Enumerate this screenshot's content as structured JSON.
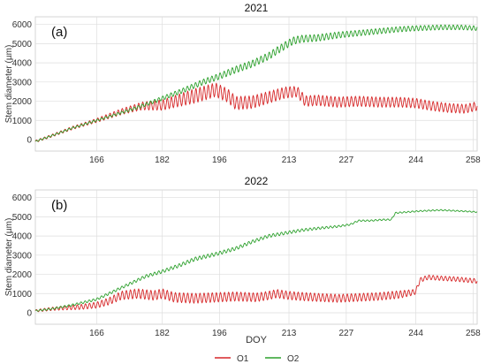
{
  "chart_data": [
    {
      "type": "line",
      "title": "2021",
      "panel_label": "(a)",
      "xlabel": "",
      "ylabel": "Stem diameter (µm)",
      "xlim": [
        151,
        259
      ],
      "ylim": [
        -600,
        6400
      ],
      "xticks": [
        166,
        182,
        196,
        213,
        227,
        244,
        258
      ],
      "yticks": [
        0,
        1000,
        2000,
        3000,
        4000,
        5000,
        6000
      ],
      "grid": true,
      "series": [
        {
          "name": "O1",
          "color": "#d62728",
          "points": [
            [
              151,
              -100
            ],
            [
              155,
              200
            ],
            [
              160,
              600
            ],
            [
              166,
              1000
            ],
            [
              172,
              1450
            ],
            [
              177,
              1750
            ],
            [
              182,
              1800
            ],
            [
              187,
              2100
            ],
            [
              192,
              2400
            ],
            [
              195,
              2600
            ],
            [
              198,
              2300
            ],
            [
              200,
              1900
            ],
            [
              204,
              1950
            ],
            [
              208,
              2200
            ],
            [
              212,
              2450
            ],
            [
              215,
              2500
            ],
            [
              217,
              2000
            ],
            [
              220,
              2050
            ],
            [
              225,
              1950
            ],
            [
              230,
              2000
            ],
            [
              235,
              1950
            ],
            [
              240,
              1950
            ],
            [
              244,
              1900
            ],
            [
              248,
              1750
            ],
            [
              252,
              1650
            ],
            [
              256,
              1600
            ],
            [
              259,
              1750
            ]
          ],
          "osc_amp": [
            [
              151,
              60
            ],
            [
              165,
              100
            ],
            [
              175,
              180
            ],
            [
              190,
              380
            ],
            [
              200,
              350
            ],
            [
              215,
              280
            ],
            [
              240,
              260
            ],
            [
              259,
              230
            ]
          ]
        },
        {
          "name": "O2",
          "color": "#2ca02c",
          "points": [
            [
              151,
              -100
            ],
            [
              155,
              200
            ],
            [
              160,
              600
            ],
            [
              166,
              1000
            ],
            [
              172,
              1400
            ],
            [
              177,
              1750
            ],
            [
              182,
              2150
            ],
            [
              187,
              2550
            ],
            [
              192,
              3000
            ],
            [
              196,
              3300
            ],
            [
              200,
              3650
            ],
            [
              204,
              3950
            ],
            [
              208,
              4350
            ],
            [
              212,
              4900
            ],
            [
              214,
              5150
            ],
            [
              216,
              5250
            ],
            [
              220,
              5300
            ],
            [
              225,
              5450
            ],
            [
              230,
              5550
            ],
            [
              235,
              5650
            ],
            [
              240,
              5750
            ],
            [
              244,
              5800
            ],
            [
              250,
              5850
            ],
            [
              255,
              5850
            ],
            [
              259,
              5800
            ]
          ],
          "osc_amp": [
            [
              151,
              40
            ],
            [
              170,
              60
            ],
            [
              185,
              120
            ],
            [
              200,
              180
            ],
            [
              213,
              200
            ],
            [
              230,
              150
            ],
            [
              259,
              120
            ]
          ]
        }
      ]
    },
    {
      "type": "line",
      "title": "2022",
      "panel_label": "(b)",
      "xlabel": "DOY",
      "ylabel": "Stem diameter (µm)",
      "xlim": [
        151,
        259
      ],
      "ylim": [
        -600,
        6400
      ],
      "xticks": [
        166,
        182,
        196,
        213,
        227,
        244,
        258
      ],
      "yticks": [
        0,
        1000,
        2000,
        3000,
        4000,
        5000,
        6000
      ],
      "grid": true,
      "series": [
        {
          "name": "O1",
          "color": "#d62728",
          "points": [
            [
              151,
              100
            ],
            [
              155,
              200
            ],
            [
              158,
              250
            ],
            [
              162,
              300
            ],
            [
              166,
              400
            ],
            [
              169,
              600
            ],
            [
              172,
              900
            ],
            [
              176,
              1000
            ],
            [
              180,
              900
            ],
            [
              182,
              1000
            ],
            [
              185,
              800
            ],
            [
              190,
              750
            ],
            [
              195,
              800
            ],
            [
              200,
              850
            ],
            [
              205,
              800
            ],
            [
              208,
              900
            ],
            [
              210,
              1000
            ],
            [
              213,
              900
            ],
            [
              216,
              850
            ],
            [
              220,
              800
            ],
            [
              225,
              750
            ],
            [
              230,
              800
            ],
            [
              235,
              850
            ],
            [
              240,
              950
            ],
            [
              243,
              1050
            ],
            [
              244,
              1100
            ],
            [
              245,
              1700
            ],
            [
              247,
              1850
            ],
            [
              250,
              1800
            ],
            [
              254,
              1750
            ],
            [
              259,
              1650
            ]
          ],
          "osc_amp": [
            [
              151,
              60
            ],
            [
              165,
              150
            ],
            [
              175,
              250
            ],
            [
              190,
              260
            ],
            [
              210,
              220
            ],
            [
              240,
              200
            ],
            [
              245,
              120
            ],
            [
              259,
              120
            ]
          ]
        },
        {
          "name": "O2",
          "color": "#2ca02c",
          "points": [
            [
              151,
              100
            ],
            [
              155,
              200
            ],
            [
              160,
              400
            ],
            [
              166,
              700
            ],
            [
              170,
              1100
            ],
            [
              174,
              1500
            ],
            [
              178,
              1900
            ],
            [
              182,
              2150
            ],
            [
              186,
              2450
            ],
            [
              190,
              2800
            ],
            [
              195,
              3050
            ],
            [
              200,
              3350
            ],
            [
              204,
              3700
            ],
            [
              208,
              4000
            ],
            [
              212,
              4150
            ],
            [
              216,
              4300
            ],
            [
              220,
              4400
            ],
            [
              225,
              4500
            ],
            [
              228,
              4600
            ],
            [
              230,
              4800
            ],
            [
              233,
              4800
            ],
            [
              236,
              4850
            ],
            [
              238,
              4850
            ],
            [
              239,
              5200
            ],
            [
              242,
              5250
            ],
            [
              245,
              5300
            ],
            [
              250,
              5350
            ],
            [
              255,
              5300
            ],
            [
              259,
              5250
            ]
          ],
          "osc_amp": [
            [
              151,
              40
            ],
            [
              170,
              70
            ],
            [
              190,
              100
            ],
            [
              213,
              80
            ],
            [
              230,
              40
            ],
            [
              259,
              30
            ]
          ]
        }
      ]
    }
  ],
  "legend": {
    "placement": "bottom-center",
    "items": [
      {
        "label": "O1",
        "color": "#d62728"
      },
      {
        "label": "O2",
        "color": "#2ca02c"
      }
    ]
  }
}
